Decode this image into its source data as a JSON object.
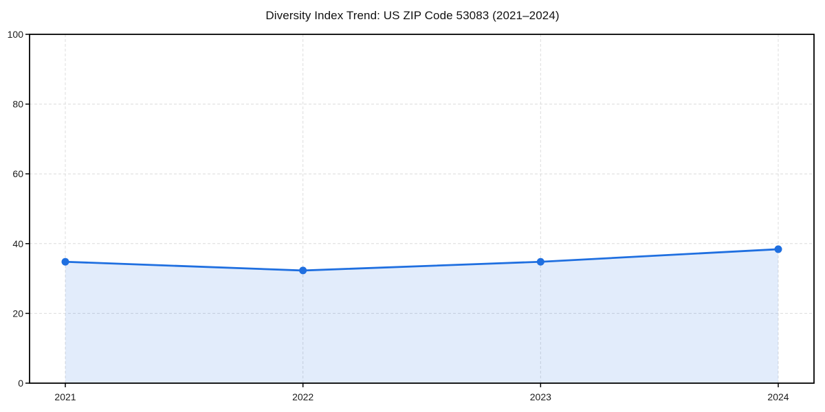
{
  "page": {
    "background_color": "#ffffff"
  },
  "chart_data": {
    "type": "line",
    "title": "Diversity Index Trend: US ZIP Code 53083 (2021–2024)",
    "categories": [
      "2021",
      "2022",
      "2023",
      "2024"
    ],
    "x": [
      2021,
      2022,
      2023,
      2024
    ],
    "series": [
      {
        "values": [
          34.8,
          32.3,
          34.8,
          38.4
        ]
      }
    ],
    "xlabel": "",
    "ylabel": "",
    "ylim": [
      0,
      100
    ],
    "yticks": [
      0,
      20,
      40,
      60,
      80,
      100
    ],
    "grid": true,
    "grid_style": "dashed",
    "legend_position": "none",
    "area_fill": true,
    "colors": {
      "line": "#1f6fe0",
      "marker": "#1f6fe0",
      "area": "rgba(31,111,224,0.13)",
      "grid": "#dcdcdc",
      "spine": "#000000",
      "tick_label": "#1a1a1a",
      "title": "#111111"
    }
  }
}
